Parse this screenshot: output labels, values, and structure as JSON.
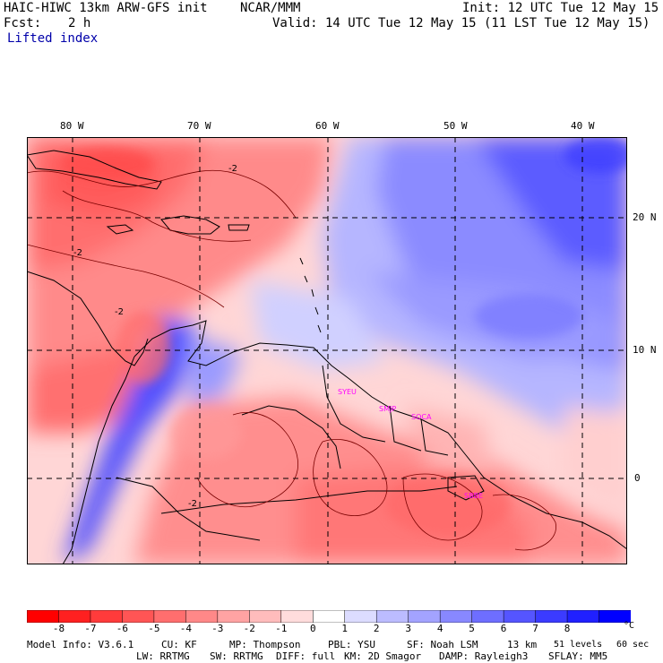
{
  "header": {
    "model_title": "HAIC-HIWC 13km ARW-GFS init",
    "org": "NCAR/MMM",
    "init": "Init: 12 UTC Tue 12 May 15",
    "forecast_label": "Fcst:",
    "forecast_value": "2 h",
    "valid": "Valid: 14 UTC Tue 12 May 15 (11 LST Tue 12 May 15)",
    "field_name": "Lifted index"
  },
  "axes": {
    "longitudes": [
      "80 W",
      "70 W",
      "60 W",
      "50 W",
      "40 W"
    ],
    "latitudes": [
      "20 N",
      "10 N",
      "0"
    ]
  },
  "city_labels": [
    "SYEU",
    "SMJP",
    "SOCA",
    "SBBE"
  ],
  "colorbar": {
    "levels": [
      "-8",
      "-7",
      "-6",
      "-5",
      "-4",
      "-3",
      "-2",
      "-1",
      "0",
      "1",
      "2",
      "3",
      "4",
      "5",
      "6",
      "7",
      "8"
    ],
    "unit": "°C",
    "colors": [
      "#ff0000",
      "#ff2020",
      "#ff3b3b",
      "#ff5555",
      "#ff6e6e",
      "#ff8888",
      "#ffa3a3",
      "#ffbcbc",
      "#ffdcdc",
      "#ffffff",
      "#dcdcff",
      "#bcbcff",
      "#a3a3ff",
      "#8888ff",
      "#6e6eff",
      "#5555ff",
      "#3b3bff",
      "#2020ff",
      "#0000ff"
    ]
  },
  "contour_labels": [
    "-2",
    "-2",
    "-2",
    "-2"
  ],
  "footer": {
    "line1_a": "Model Info: V3.6.1",
    "line1_b": "CU: KF",
    "line1_c": "MP: Thompson",
    "line1_d": "PBL: YSU",
    "line1_e": "SF: Noah LSM",
    "line1_f": "13 km",
    "line1_g": "51 levels",
    "line1_h": "60 sec",
    "line2_a": "LW: RRTMG",
    "line2_b": "SW: RRTMG",
    "line2_c": "DIFF: full",
    "line2_d": "KM: 2D Smagor",
    "line2_e": "DAMP: Rayleigh3",
    "line2_f": "SFLAY: MM5"
  }
}
